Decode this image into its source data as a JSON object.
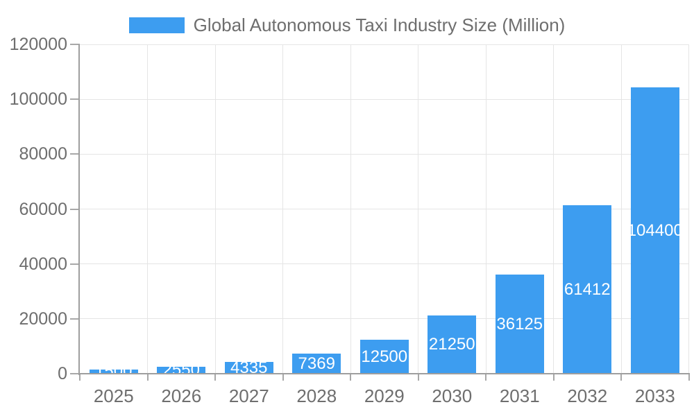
{
  "chart_data": {
    "type": "bar",
    "title": "Global Autonomous Taxi Industry Size (Million)",
    "categories": [
      "2025",
      "2026",
      "2027",
      "2028",
      "2029",
      "2030",
      "2031",
      "2032",
      "2033"
    ],
    "values": [
      1500,
      2550,
      4335,
      7369,
      12500,
      21250,
      36125,
      61412,
      104400
    ],
    "series": [
      {
        "name": "Global Autonomous Taxi Industry Size (Million)",
        "values": [
          1500,
          2550,
          4335,
          7369,
          12500,
          21250,
          36125,
          61412,
          104400
        ]
      }
    ],
    "xlabel": "",
    "ylabel": "",
    "ylim": [
      0,
      120000
    ],
    "yticks": [
      0,
      20000,
      40000,
      60000,
      80000,
      100000,
      120000
    ],
    "grid": true,
    "legend_position": "top-center",
    "bar_labels_position": "inside-center",
    "colors": {
      "bar": "#3D9DF0",
      "bar_label": "#FFFFFF",
      "axis_line": "#9E9E9E",
      "tick": "#A8A8A8",
      "gridline": "#E5E5E5",
      "axis_text": "#6E6E6E",
      "background": "#FFFFFF"
    }
  }
}
